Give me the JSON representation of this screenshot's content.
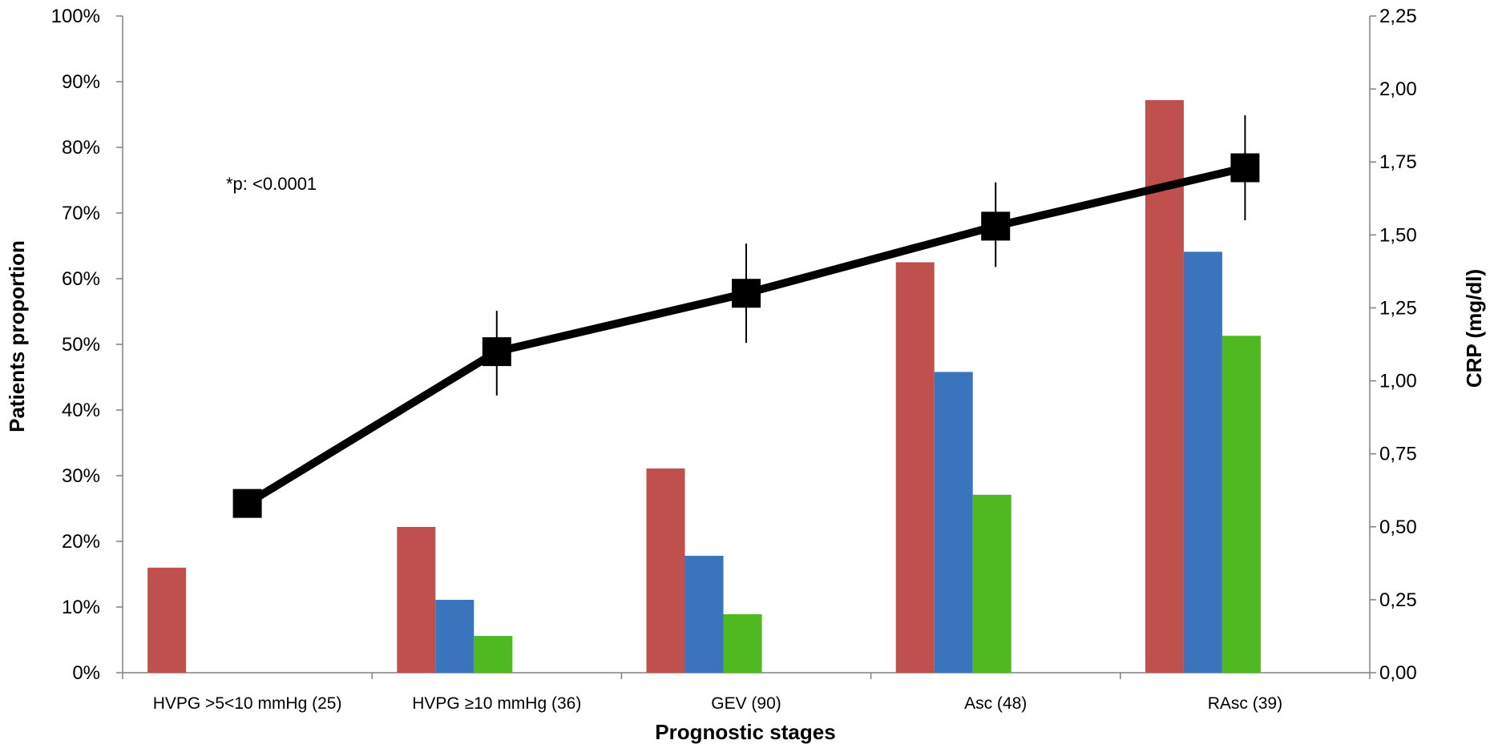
{
  "chart_data": {
    "type": "bar",
    "categories": [
      "HVPG >5<10 mmHg (25)",
      "HVPG ≥10 mmHg (36)",
      "GEV (90)",
      "Asc (48)",
      "RAsc (39)"
    ],
    "series": [
      {
        "type": "bar",
        "color": "#C0504D",
        "values": [
          16.0,
          22.2,
          31.1,
          62.5,
          87.2
        ]
      },
      {
        "type": "bar",
        "color": "#3A74BC",
        "values": [
          0,
          11.1,
          17.8,
          45.8,
          64.1
        ]
      },
      {
        "type": "bar",
        "color": "#4EBA1F",
        "values": [
          0,
          5.6,
          8.9,
          27.1,
          51.3
        ]
      },
      {
        "type": "line",
        "axis": "right",
        "color": "#000000",
        "marker": "square",
        "values": [
          0.58,
          1.1,
          1.3,
          1.53,
          1.73
        ],
        "error_low": [
          null,
          0.95,
          1.13,
          1.39,
          1.55
        ],
        "error_high": [
          null,
          1.24,
          1.47,
          1.68,
          1.91
        ]
      }
    ],
    "xlabel": "Prognostic stages",
    "ylabel": "Patients proportion",
    "y2label": "CRP (mg/dl)",
    "ylim": [
      0,
      100
    ],
    "y2lim": [
      0,
      2.25
    ],
    "yticks": [
      "0%",
      "10%",
      "20%",
      "30%",
      "40%",
      "50%",
      "60%",
      "70%",
      "80%",
      "90%",
      "100%"
    ],
    "y2ticks": [
      "0,00",
      "0,25",
      "0,50",
      "0,75",
      "1,00",
      "1,25",
      "1,50",
      "1,75",
      "2,00",
      "2,25"
    ],
    "annotation": "*p: <0.0001",
    "grid": false,
    "legend": "none"
  }
}
